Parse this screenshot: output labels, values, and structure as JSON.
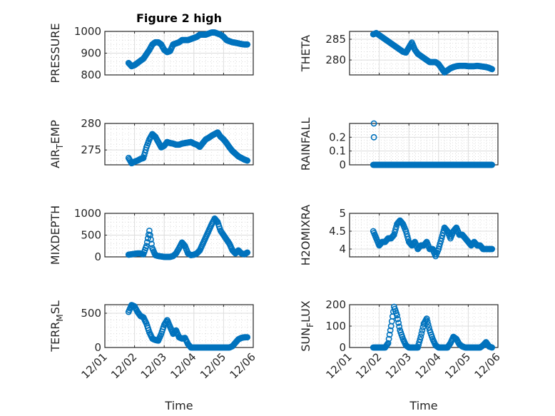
{
  "title": "Figure 2 high",
  "chart_data": [
    {
      "type": "scatter",
      "name": "pressure",
      "ylabel": "PRESSURE",
      "xlabel": "",
      "ylim": [
        800,
        1000
      ],
      "yticks": [
        800,
        900,
        1000
      ],
      "x_start_day": 0.8,
      "x_step_day": 0.1,
      "y": [
        855,
        840,
        845,
        855,
        865,
        875,
        895,
        915,
        940,
        950,
        950,
        940,
        915,
        905,
        910,
        940,
        945,
        950,
        960,
        960,
        960,
        965,
        970,
        975,
        985,
        985,
        985,
        990,
        995,
        995,
        990,
        985,
        975,
        960,
        955,
        950,
        948,
        945,
        942,
        940,
        940
      ]
    },
    {
      "type": "scatter",
      "name": "theta",
      "ylabel": "THETA",
      "xlabel": "",
      "ylim": [
        276.4,
        286.9
      ],
      "yticks": [
        280,
        285
      ],
      "x_start_day": 0.8,
      "x_step_day": 0.1,
      "y": [
        286.2,
        286.5,
        286,
        285.5,
        285,
        284.5,
        284,
        283.5,
        283,
        282.5,
        282,
        281.8,
        283,
        284.2,
        282.5,
        281.5,
        281,
        280.5,
        280,
        279.5,
        279.5,
        279.5,
        279,
        278,
        277,
        277.5,
        278,
        278.3,
        278.5,
        278.6,
        278.6,
        278.6,
        278.5,
        278.5,
        278.5,
        278.6,
        278.5,
        278.4,
        278.3,
        278.1,
        277.8
      ]
    },
    {
      "type": "scatter",
      "name": "air-temp",
      "ylabel": "AIR_TEMP",
      "xlabel": "",
      "ylim": [
        272.2,
        280
      ],
      "yticks": [
        275,
        280
      ],
      "x_start_day": 0.8,
      "x_step_day": 0.1,
      "y": [
        273.5,
        272.5,
        272.8,
        273,
        273.3,
        273.5,
        275.5,
        277,
        278,
        277.5,
        276.5,
        275.5,
        275.8,
        276.5,
        276.3,
        276.2,
        276,
        276,
        276.2,
        276.3,
        276.4,
        276.5,
        276.2,
        276,
        275.6,
        276.3,
        277,
        277.3,
        277.7,
        278,
        278.3,
        277.5,
        277,
        276.3,
        275.5,
        274.8,
        274.3,
        273.8,
        273.5,
        273.2,
        273
      ]
    },
    {
      "type": "scatter",
      "name": "rainfall",
      "ylabel": "RAINFALL",
      "xlabel": "",
      "ylim": [
        0,
        0.3
      ],
      "yticks": [
        0,
        0.1,
        0.2
      ],
      "x_start_day": 0.8,
      "x_step_day": 0.1,
      "y": [
        0,
        0,
        0,
        0,
        0,
        0,
        0,
        0,
        0,
        0,
        0,
        0,
        0,
        0,
        0,
        0,
        0,
        0,
        0,
        0,
        0,
        0,
        0,
        0,
        0,
        0,
        0,
        0,
        0,
        0,
        0,
        0,
        0,
        0,
        0,
        0,
        0,
        0,
        0,
        0,
        0
      ],
      "extra_points": [
        {
          "x_day": 0.82,
          "y": 0.3
        },
        {
          "x_day": 0.82,
          "y": 0.2
        }
      ]
    },
    {
      "type": "scatter",
      "name": "mixdepth",
      "ylabel": "MIXDEPTH",
      "xlabel": "",
      "ylim": [
        0,
        1000
      ],
      "yticks": [
        0,
        500,
        1000
      ],
      "x_start_day": 0.8,
      "x_step_day": 0.1,
      "y": [
        50,
        60,
        70,
        80,
        80,
        60,
        250,
        600,
        200,
        40,
        20,
        10,
        0,
        0,
        0,
        20,
        80,
        200,
        330,
        250,
        80,
        40,
        50,
        80,
        150,
        300,
        450,
        600,
        750,
        880,
        800,
        600,
        500,
        400,
        300,
        150,
        80,
        150,
        80,
        60,
        100
      ]
    },
    {
      "type": "scatter",
      "name": "h2omixra",
      "ylabel": "H2OMIXRA",
      "xlabel": "",
      "ylim": [
        3.78,
        5
      ],
      "yticks": [
        4,
        4.5,
        5
      ],
      "x_start_day": 0.8,
      "x_step_day": 0.1,
      "y": [
        4.5,
        4.3,
        4.1,
        4.2,
        4.2,
        4.3,
        4.3,
        4.4,
        4.7,
        4.8,
        4.7,
        4.5,
        4.2,
        4.1,
        4.2,
        4.0,
        4.1,
        4.1,
        4.2,
        4.0,
        4.0,
        3.8,
        4.0,
        4.3,
        4.6,
        4.5,
        4.3,
        4.5,
        4.6,
        4.4,
        4.4,
        4.3,
        4.2,
        4.1,
        4.2,
        4.1,
        4.1,
        4.0,
        4.0,
        4.0,
        4.0
      ]
    },
    {
      "type": "scatter",
      "name": "terr-msl",
      "ylabel": "TERR_MSL",
      "xlabel": "Time",
      "ylim": [
        0,
        625
      ],
      "yticks": [
        0,
        500
      ],
      "x_start_day": 0.8,
      "x_step_day": 0.1,
      "y": [
        520,
        620,
        600,
        520,
        460,
        440,
        350,
        220,
        130,
        110,
        100,
        200,
        330,
        400,
        300,
        200,
        250,
        150,
        130,
        140,
        50,
        0,
        0,
        0,
        0,
        0,
        0,
        0,
        0,
        0,
        0,
        0,
        0,
        0,
        0,
        20,
        70,
        120,
        140,
        150,
        150
      ]
    },
    {
      "type": "scatter",
      "name": "sun-flux",
      "ylabel": "SUN_FLUX",
      "xlabel": "Time",
      "ylim": [
        0,
        200
      ],
      "yticks": [
        0,
        100,
        200
      ],
      "x_start_day": 0.8,
      "x_step_day": 0.1,
      "y": [
        0,
        0,
        0,
        0,
        0,
        20,
        100,
        190,
        150,
        80,
        40,
        10,
        0,
        0,
        0,
        0,
        50,
        110,
        135,
        80,
        40,
        10,
        0,
        0,
        0,
        0,
        20,
        50,
        40,
        15,
        5,
        0,
        0,
        0,
        0,
        0,
        0,
        10,
        25,
        5,
        0
      ]
    }
  ],
  "xticks": [
    "12/01",
    "12/02",
    "12/03",
    "12/04",
    "12/05",
    "12/06"
  ],
  "xlim_days": [
    0,
    5
  ],
  "colors": {
    "marker": "#0072BD",
    "axis": "#262626",
    "grid": "#dcdcdc"
  }
}
